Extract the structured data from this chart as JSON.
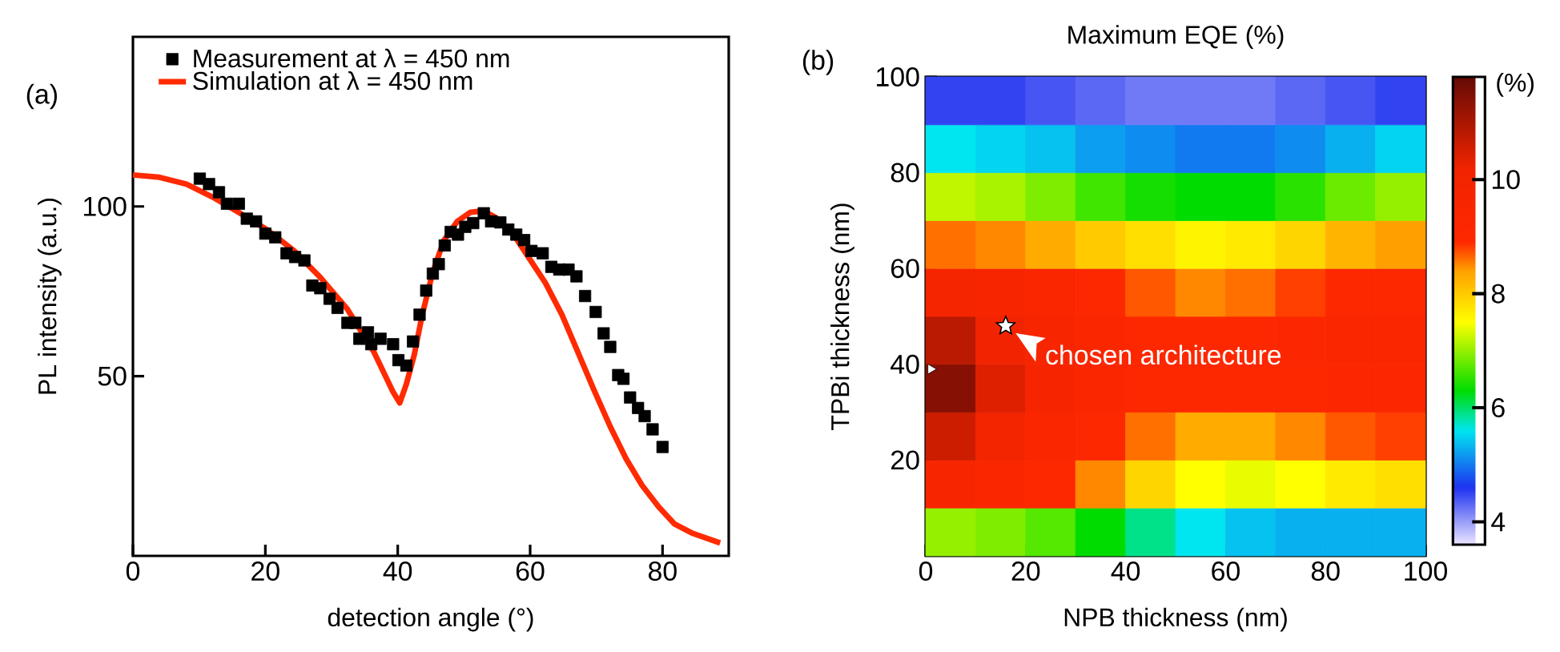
{
  "chart_data": [
    {
      "type": "line",
      "xlabel": "detection angle (°)",
      "ylabel": "PL intensity (a.u.)",
      "xlim": [
        0,
        90
      ],
      "ylim": [
        -3,
        150
      ],
      "xticks": [
        0,
        20,
        40,
        60,
        80
      ],
      "yticks": [
        50,
        100
      ],
      "legend": "top left",
      "grid": false,
      "annotations": [
        "(a)"
      ],
      "series": [
        {
          "name": "Measurement at λ = 450 nm",
          "type": "scatter",
          "marker": "square",
          "color": "#000000",
          "x": [
            10.1,
            11.5,
            13,
            14.2,
            16,
            17.2,
            18.6,
            20,
            21.5,
            23.2,
            24.5,
            25.9,
            27.1,
            28.3,
            29.7,
            30.9,
            32.4,
            33.6,
            34.2,
            35.5,
            36,
            37.4,
            39.3,
            40.1,
            41.3,
            42.3,
            43.3,
            44.3,
            45.3,
            46.2,
            47.1,
            48,
            49.1,
            50.2,
            51.4,
            53,
            54.1,
            55.5,
            56.7,
            57.9,
            59.1,
            60.2,
            61.9,
            63.2,
            64.4,
            65.8,
            67,
            68.3,
            69.9,
            71.1,
            72.1,
            73.3,
            74.1,
            75.1,
            76.3,
            77.3,
            78.5,
            80
          ],
          "values": [
            108.2,
            106.6,
            104.2,
            100.8,
            100.8,
            96.4,
            95.6,
            92,
            90.9,
            86.2,
            85.1,
            84.1,
            76.7,
            75.9,
            72.8,
            70.1,
            65.7,
            65.7,
            61,
            62.9,
            59.4,
            61,
            59.4,
            54.7,
            53.1,
            60.2,
            68.1,
            75.2,
            80.2,
            83,
            88.5,
            92.5,
            91.7,
            94,
            95.1,
            98,
            95.6,
            95.3,
            93.2,
            91.7,
            90.1,
            86.9,
            86.2,
            82.2,
            81.4,
            81.4,
            79.4,
            73.6,
            68.9,
            62.6,
            58.6,
            50.3,
            49.2,
            43.7,
            40.6,
            38.2,
            34.3,
            29.1
          ]
        },
        {
          "name": "Simulation at λ = 450 nm",
          "type": "line",
          "line_style": "solid",
          "color": "#ff2a00",
          "x": [
            0,
            4,
            8.1,
            12.1,
            16.2,
            20.2,
            24.3,
            28.3,
            32.4,
            36.4,
            39.3,
            40.3,
            41.3,
            42.5,
            43.7,
            45.3,
            47,
            49,
            51,
            53,
            55.1,
            57.5,
            59.9,
            62.3,
            64.8,
            67.2,
            69.6,
            72.1,
            74.5,
            76.9,
            79.4,
            81.8,
            84.6,
            88.7
          ],
          "values": [
            109.3,
            108.6,
            106.6,
            102.7,
            98,
            93.2,
            87,
            79.1,
            69.7,
            57.1,
            45.3,
            42.1,
            47.6,
            56.3,
            68.1,
            80.7,
            90.1,
            95.6,
            98.3,
            98.7,
            96.4,
            91.7,
            84.6,
            77.5,
            68.1,
            57.1,
            46.1,
            35.1,
            25.6,
            17.8,
            11.5,
            6.4,
            3.6,
            0.8
          ]
        }
      ]
    },
    {
      "type": "heatmap",
      "title": "Maximum EQE (%)",
      "xlabel": "NPB thickness (nm)",
      "ylabel": "TPBi thickness (nm)",
      "clabel": "(%)",
      "xlim": [
        0,
        100
      ],
      "ylim": [
        0,
        100
      ],
      "xticks": [
        0,
        20,
        40,
        60,
        80,
        100
      ],
      "yticks": [
        20,
        40,
        60,
        80,
        100
      ],
      "clim": [
        3.6,
        11.8
      ],
      "cticks": [
        4,
        6,
        8,
        10
      ],
      "x": [
        5,
        15,
        25,
        35,
        45,
        55,
        65,
        75,
        85,
        95
      ],
      "y": [
        95,
        85,
        75,
        65,
        55,
        45,
        35,
        25,
        15,
        5
      ],
      "cells": [
        [
          4.5,
          4.5,
          4.4,
          4.3,
          4.2,
          4.2,
          4.2,
          4.3,
          4.4,
          4.5
        ],
        [
          5.6,
          5.5,
          5.4,
          5.2,
          5.1,
          5.0,
          5.0,
          5.1,
          5.3,
          5.5
        ],
        [
          7.2,
          7.1,
          6.9,
          6.6,
          6.4,
          6.3,
          6.3,
          6.5,
          6.8,
          7.0
        ],
        [
          8.6,
          8.5,
          8.3,
          8.0,
          7.8,
          7.6,
          7.7,
          7.9,
          8.2,
          8.4
        ],
        [
          9.8,
          9.6,
          9.3,
          9.0,
          8.7,
          8.5,
          8.6,
          8.8,
          9.0,
          9.1
        ],
        [
          10.8,
          10.1,
          9.6,
          9.3,
          9.1,
          9.0,
          9.1,
          9.2,
          9.3,
          9.3
        ],
        [
          11.4,
          10.4,
          9.7,
          9.3,
          9.1,
          9.0,
          9.0,
          9.1,
          9.2,
          9.2
        ],
        [
          10.6,
          9.9,
          9.4,
          9.0,
          8.6,
          8.3,
          8.3,
          8.5,
          8.7,
          8.8
        ],
        [
          9.5,
          9.3,
          9.0,
          8.5,
          7.9,
          7.5,
          7.4,
          7.5,
          7.7,
          7.8
        ],
        [
          7.0,
          6.9,
          6.7,
          6.3,
          5.9,
          5.6,
          5.4,
          5.3,
          5.3,
          5.3
        ]
      ],
      "annotations": [
        "(b)",
        {
          "text": "chosen architecture",
          "x": 16,
          "y": 48
        }
      ],
      "series": [
        {
          "type": "scatter",
          "marker": "star",
          "color": "#ffffff",
          "x": [
            16
          ],
          "values": [
            48
          ]
        },
        {
          "type": "scatter",
          "marker": "triangle",
          "color": "#ffffff",
          "x": [
            1
          ],
          "values": [
            39
          ]
        }
      ]
    }
  ]
}
